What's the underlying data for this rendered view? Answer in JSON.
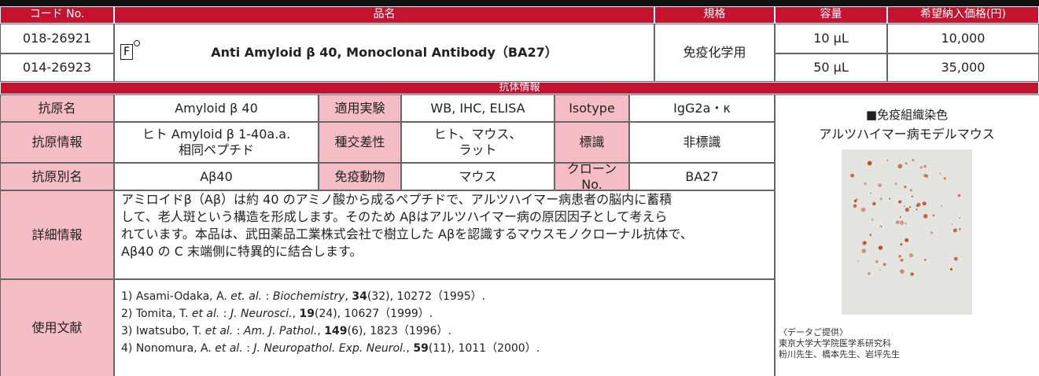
{
  "header_columns": [
    "コード No.",
    "品名",
    "規格",
    "容量",
    "希望納入価格(円)"
  ],
  "product": {
    "name": "Anti Amyloid β 40, Monoclonal Antibody（BA27）",
    "icon": "F",
    "usage": "免疫化学用",
    "items": [
      {
        "code": "018-26921",
        "volume": "10 μL",
        "price": "10,000"
      },
      {
        "code": "014-26923",
        "volume": "50 μL",
        "price": "35,000"
      }
    ]
  },
  "section_title": "抗体情報",
  "info_table": [
    [
      "抗原名",
      "Amyloid β 40",
      "適用実験",
      "WB, IHC, ELISA",
      "Isotype",
      "IgG2a・κ"
    ],
    [
      "抗原情報",
      "ヒト Amyloid β 1-40a.a.\n相同ペプチド",
      "種交差性",
      "ヒト、マウス、\nラット",
      "標識",
      "非標識"
    ],
    [
      "抗原別名",
      "Aβ40",
      "免疫動物",
      "マウス",
      "クローン No.",
      "BA27"
    ]
  ],
  "detail": {
    "label": "詳細情報",
    "lines": [
      "アミロイドβ（Aβ）は約 40 のアミノ酸から成るペプチドで、アルツハイマー病患者の脳内に蓄積",
      "して、老人斑という構造を形成します。そのため Aβはアルツハイマー病の原因因子として考えら",
      "れています。本品は、武田薬品工業株式会社で樹立した Aβを認識するマウスモノクローナル抗体で、",
      "Aβ40 の C 末端側に特異的に結合します。"
    ]
  },
  "references": {
    "label": "使用文献",
    "items": [
      [
        {
          "text": "1) Asami-Odaka, A. "
        },
        {
          "text": "et. al.",
          "style": "italic"
        },
        {
          "text": " : "
        },
        {
          "text": "Biochemistry",
          "style": "italic"
        },
        {
          "text": ", "
        },
        {
          "text": "34",
          "style": "bold"
        },
        {
          "text": "(32), 10272（1995）."
        }
      ],
      [
        {
          "text": "2) Tomita, T. "
        },
        {
          "text": "et al.",
          "style": "italic"
        },
        {
          "text": " : "
        },
        {
          "text": "J. Neurosci.",
          "style": "italic"
        },
        {
          "text": ", "
        },
        {
          "text": "19",
          "style": "bold"
        },
        {
          "text": "(24), 10627（1999）."
        }
      ],
      [
        {
          "text": "3) Iwatsubo, T. "
        },
        {
          "text": "et al.",
          "style": "italic"
        },
        {
          "text": " : "
        },
        {
          "text": "Am. J. Pathol.",
          "style": "italic"
        },
        {
          "text": ", "
        },
        {
          "text": "149",
          "style": "bold"
        },
        {
          "text": "(6), 1823（1996）."
        }
      ],
      [
        {
          "text": "4) Nonomura, A. "
        },
        {
          "text": "et al.",
          "style": "italic"
        },
        {
          "text": " : "
        },
        {
          "text": "J. Neuropathol. Exp. Neurol.",
          "style": "italic"
        },
        {
          "text": ", "
        },
        {
          "text": "59",
          "style": "bold"
        },
        {
          "text": "(11), 1011（2000）."
        }
      ]
    ]
  },
  "figure": {
    "title": "■免疫組織染色",
    "subtitle": "アルツハイマー病モデルマウス",
    "credit": [
      "〈データご提供〉",
      "東京大学大学院医学系研究科",
      "粉川先生、橋本先生、岩坪先生"
    ]
  }
}
